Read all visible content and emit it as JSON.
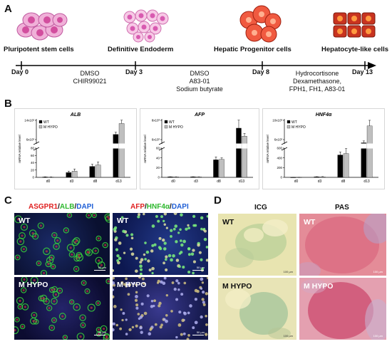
{
  "panel_a": {
    "label": "A",
    "stages": [
      "Pluripotent stem cells",
      "Definitive Endoderm",
      "Hepatic Progenitor cells",
      "Hepatocyte-like cells"
    ],
    "days": [
      "Day 0",
      "Day 3",
      "Day 8",
      "Day 13"
    ],
    "treatments": [
      [
        "DMSO",
        "CHIR99021"
      ],
      [
        "DMSO",
        "A83-01",
        "Sodium butyrate"
      ],
      [
        "Hydrocortisone",
        "Dexamethasone,",
        "FPH1, FH1, A83-01"
      ]
    ]
  },
  "panel_b": {
    "label": "B"
  },
  "chart_data": [
    {
      "type": "bar",
      "title": "ALB",
      "ylabel": "mRNA relative level",
      "categories": [
        "d0",
        "d3",
        "d8",
        "d13"
      ],
      "y_ticks_lower": [
        "0",
        "20",
        "40",
        "60",
        "80"
      ],
      "y_ticks_upper": [
        "6x10²",
        "14x10²"
      ],
      "series": [
        {
          "name": "WT",
          "values": [
            1,
            13,
            30,
            600
          ],
          "errors": [
            0.5,
            4,
            6,
            120
          ],
          "color": "#000000"
        },
        {
          "name": "M HYPO",
          "values": [
            1,
            17,
            34,
            1200
          ],
          "errors": [
            0.5,
            6,
            8,
            180
          ],
          "color": "#bfbfbf"
        }
      ],
      "legend": "top-left"
    },
    {
      "type": "bar",
      "title": "AFP",
      "ylabel": "mRNA relative level",
      "categories": [
        "d0",
        "d3",
        "d8",
        "d13"
      ],
      "y_ticks_lower": [
        "0",
        "20",
        "40",
        "60"
      ],
      "y_ticks_upper": [
        "6x10²",
        "8x10³"
      ],
      "series": [
        {
          "name": "WT",
          "values": [
            1,
            1,
            36,
            3000
          ],
          "errors": [
            0.3,
            0.3,
            6,
            1500
          ],
          "color": "#000000"
        },
        {
          "name": "M HYPO",
          "values": [
            1,
            1,
            37,
            1500
          ],
          "errors": [
            0.3,
            0.3,
            3,
            500
          ],
          "color": "#bfbfbf"
        }
      ],
      "legend": "top-left"
    },
    {
      "type": "bar",
      "title": "HNF4α",
      "ylabel": "mRNA relative level",
      "categories": [
        "d0",
        "d3",
        "d8",
        "d13"
      ],
      "y_ticks_lower": [
        "0",
        "200",
        "400",
        "600"
      ],
      "y_ticks_upper": [
        "6x10²",
        "10x10³"
      ],
      "series": [
        {
          "name": "WT",
          "values": [
            1,
            10,
            460,
            800
          ],
          "errors": [
            0.5,
            4,
            60,
            300
          ],
          "color": "#000000"
        },
        {
          "name": "M HYPO",
          "values": [
            1,
            12,
            490,
            3500
          ],
          "errors": [
            0.5,
            4,
            100,
            900
          ],
          "color": "#bfbfbf"
        }
      ],
      "legend": "top-left"
    }
  ],
  "panel_c": {
    "label": "C",
    "stain1": {
      "p1": "ASGPR1",
      "sep1": "/",
      "p2": "ALB",
      "sep2": "/",
      "p3": "DAPI"
    },
    "stain2": {
      "p1": "AFP",
      "sep1": "/",
      "p2": "HNF4α",
      "sep2": "/",
      "p3": "DAPI"
    },
    "row_labels": [
      "WT",
      "M HYPO"
    ],
    "scale": "50 µm"
  },
  "panel_d": {
    "label": "D",
    "columns": [
      "ICG",
      "PAS"
    ],
    "row_labels": [
      "WT",
      "M HYPO"
    ],
    "scale": "100 µm"
  },
  "colors": {
    "asgpr1": "#e02020",
    "alb": "#2db82d",
    "dapi": "#1f5fd6",
    "stem_cell": "#d070b0",
    "endoderm": "#e88ac8",
    "progenitor": "#e23a2a",
    "hepatocyte": "#c0301e"
  }
}
